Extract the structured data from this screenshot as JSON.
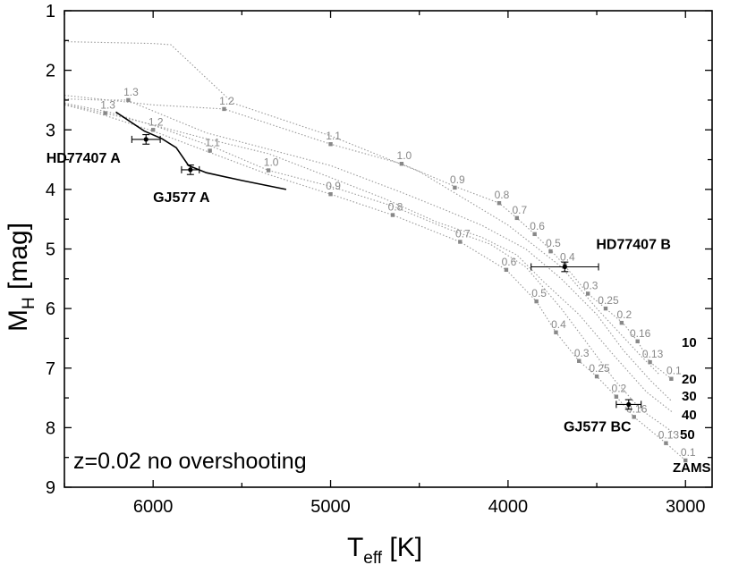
{
  "chart_data": {
    "type": "scatter",
    "title": "",
    "xlabel": "T",
    "xlabel_sub": "eff",
    "xlabel_unit": " [K]",
    "ylabel": "M",
    "ylabel_sub": "H",
    "ylabel_unit": " [mag]",
    "xlim": [
      6500,
      2850
    ],
    "ylim": [
      9,
      1
    ],
    "xticks": [
      6000,
      5000,
      4000,
      3000
    ],
    "yticks": [
      1,
      2,
      3,
      4,
      5,
      6,
      7,
      8,
      9
    ],
    "annotation": "z=0.02 no overshooting",
    "isochrones": [
      {
        "name": "10",
        "points": [
          [
            6500,
            1.52
          ],
          [
            6000,
            1.55
          ],
          [
            5900,
            1.57
          ],
          [
            5550,
            2.55
          ],
          [
            5000,
            3.1
          ],
          [
            4500,
            3.7
          ],
          [
            4000,
            4.6
          ],
          [
            3700,
            5.3
          ],
          [
            3500,
            6.0
          ],
          [
            3250,
            6.8
          ],
          [
            3150,
            7.1
          ]
        ]
      },
      {
        "name": "20",
        "points": [
          [
            6500,
            2.42
          ],
          [
            6000,
            2.58
          ],
          [
            5600,
            2.65
          ],
          [
            5000,
            3.24
          ],
          [
            4600,
            3.57
          ],
          [
            4300,
            3.95
          ],
          [
            4050,
            4.23
          ],
          [
            3950,
            4.48
          ],
          [
            3850,
            4.75
          ],
          [
            3750,
            5.05
          ],
          [
            3680,
            5.28
          ],
          [
            3550,
            5.75
          ],
          [
            3450,
            6.0
          ],
          [
            3350,
            6.25
          ],
          [
            3270,
            6.55
          ],
          [
            3200,
            6.9
          ],
          [
            3080,
            7.18
          ]
        ]
      },
      {
        "name": "30",
        "points": [
          [
            6500,
            2.48
          ],
          [
            6300,
            2.5
          ],
          [
            6150,
            2.5
          ],
          [
            5700,
            3.05
          ],
          [
            5000,
            3.6
          ],
          [
            4600,
            4.05
          ],
          [
            4350,
            4.35
          ],
          [
            4150,
            4.6
          ],
          [
            3900,
            5.0
          ],
          [
            3700,
            5.5
          ],
          [
            3500,
            6.1
          ],
          [
            3350,
            6.7
          ],
          [
            3200,
            7.2
          ],
          [
            3080,
            7.55
          ]
        ]
      },
      {
        "name": "40",
        "points": [
          [
            6500,
            2.55
          ],
          [
            6250,
            2.7
          ],
          [
            6050,
            2.88
          ],
          [
            5700,
            3.15
          ],
          [
            5350,
            3.4
          ],
          [
            5000,
            3.8
          ],
          [
            4700,
            4.15
          ],
          [
            4400,
            4.55
          ],
          [
            4150,
            4.8
          ],
          [
            3950,
            5.1
          ],
          [
            3800,
            5.55
          ],
          [
            3600,
            6.1
          ],
          [
            3400,
            6.8
          ],
          [
            3220,
            7.4
          ],
          [
            3070,
            7.75
          ]
        ]
      },
      {
        "name": "50",
        "points": [
          [
            6500,
            2.57
          ],
          [
            6270,
            2.72
          ],
          [
            6020,
            2.9
          ],
          [
            5650,
            3.3
          ],
          [
            5350,
            3.68
          ],
          [
            5000,
            3.95
          ],
          [
            4650,
            4.28
          ],
          [
            4350,
            4.65
          ],
          [
            4100,
            4.92
          ],
          [
            3900,
            5.3
          ],
          [
            3700,
            6.0
          ],
          [
            3550,
            6.6
          ],
          [
            3400,
            7.2
          ],
          [
            3250,
            7.7
          ],
          [
            3060,
            8.1
          ]
        ]
      },
      {
        "name": "ZAMS",
        "points": [
          [
            6500,
            2.58
          ],
          [
            6300,
            2.73
          ],
          [
            6000,
            3.02
          ],
          [
            5680,
            3.38
          ],
          [
            5350,
            3.75
          ],
          [
            5000,
            4.08
          ],
          [
            4650,
            4.43
          ],
          [
            4270,
            4.88
          ],
          [
            4010,
            5.35
          ],
          [
            3840,
            5.88
          ],
          [
            3730,
            6.4
          ],
          [
            3600,
            6.88
          ],
          [
            3500,
            7.14
          ],
          [
            3390,
            7.48
          ],
          [
            3290,
            7.82
          ],
          [
            3110,
            8.26
          ],
          [
            3000,
            8.55
          ]
        ]
      }
    ],
    "mass_markers": [
      {
        "label": "1.3",
        "x": 6140,
        "y": 2.5
      },
      {
        "label": "1.3",
        "x": 6270,
        "y": 2.72
      },
      {
        "label": "1.2",
        "x": 5600,
        "y": 2.65
      },
      {
        "label": "1.2",
        "x": 6000,
        "y": 3.0
      },
      {
        "label": "1.1",
        "x": 5000,
        "y": 3.24
      },
      {
        "label": "1.1",
        "x": 5680,
        "y": 3.35
      },
      {
        "label": "1.0",
        "x": 4600,
        "y": 3.57
      },
      {
        "label": "1.0",
        "x": 5350,
        "y": 3.68
      },
      {
        "label": "0.9",
        "x": 4300,
        "y": 3.97
      },
      {
        "label": "0.9",
        "x": 5000,
        "y": 4.08
      },
      {
        "label": "0.8",
        "x": 4050,
        "y": 4.23
      },
      {
        "label": "0.8",
        "x": 4650,
        "y": 4.43
      },
      {
        "label": "0.7",
        "x": 3950,
        "y": 4.48
      },
      {
        "label": "0.7",
        "x": 4270,
        "y": 4.88
      },
      {
        "label": "0.6",
        "x": 3850,
        "y": 4.75
      },
      {
        "label": "0.6",
        "x": 4010,
        "y": 5.35
      },
      {
        "label": "0.5",
        "x": 3760,
        "y": 5.04
      },
      {
        "label": "0.5",
        "x": 3840,
        "y": 5.88
      },
      {
        "label": "0.4",
        "x": 3680,
        "y": 5.27
      },
      {
        "label": "0.4",
        "x": 3730,
        "y": 6.4
      },
      {
        "label": "0.3",
        "x": 3550,
        "y": 5.75
      },
      {
        "label": "0.3",
        "x": 3600,
        "y": 6.88
      },
      {
        "label": "0.25",
        "x": 3450,
        "y": 6.0
      },
      {
        "label": "0.25",
        "x": 3500,
        "y": 7.14
      },
      {
        "label": "0.2",
        "x": 3360,
        "y": 6.24
      },
      {
        "label": "0.2",
        "x": 3390,
        "y": 7.48
      },
      {
        "label": "0.16",
        "x": 3270,
        "y": 6.55
      },
      {
        "label": "0.16",
        "x": 3290,
        "y": 7.82
      },
      {
        "label": "0.13",
        "x": 3200,
        "y": 6.9
      },
      {
        "label": "0.13",
        "x": 3110,
        "y": 8.26
      },
      {
        "label": "0.1",
        "x": 3080,
        "y": 7.18
      },
      {
        "label": "0.1",
        "x": 3000,
        "y": 8.55
      }
    ],
    "tracks": [
      {
        "name": "HD77407 A track",
        "points": [
          [
            6210,
            2.7
          ],
          [
            6050,
            3.02
          ],
          [
            5950,
            3.15
          ],
          [
            5870,
            3.3
          ],
          [
            5800,
            3.6
          ],
          [
            5700,
            3.72
          ],
          [
            5500,
            3.85
          ],
          [
            5250,
            4.0
          ]
        ]
      }
    ],
    "stars": [
      {
        "name": "HD77407 A",
        "x": 6040,
        "y": 3.16,
        "xerr": 80,
        "yerr": 0.08
      },
      {
        "name": "GJ577 A",
        "x": 5790,
        "y": 3.67,
        "xerr": 50,
        "yerr": 0.08
      },
      {
        "name": "HD77407 B",
        "x": 3680,
        "y": 5.3,
        "xerr": 190,
        "yerr": 0.08
      },
      {
        "name": "GJ577 BC",
        "x": 3320,
        "y": 7.61,
        "xerr": 70,
        "yerr": 0.08
      }
    ],
    "age_labels": [
      "10",
      "20",
      "30",
      "40",
      "50",
      "ZAMS"
    ]
  }
}
